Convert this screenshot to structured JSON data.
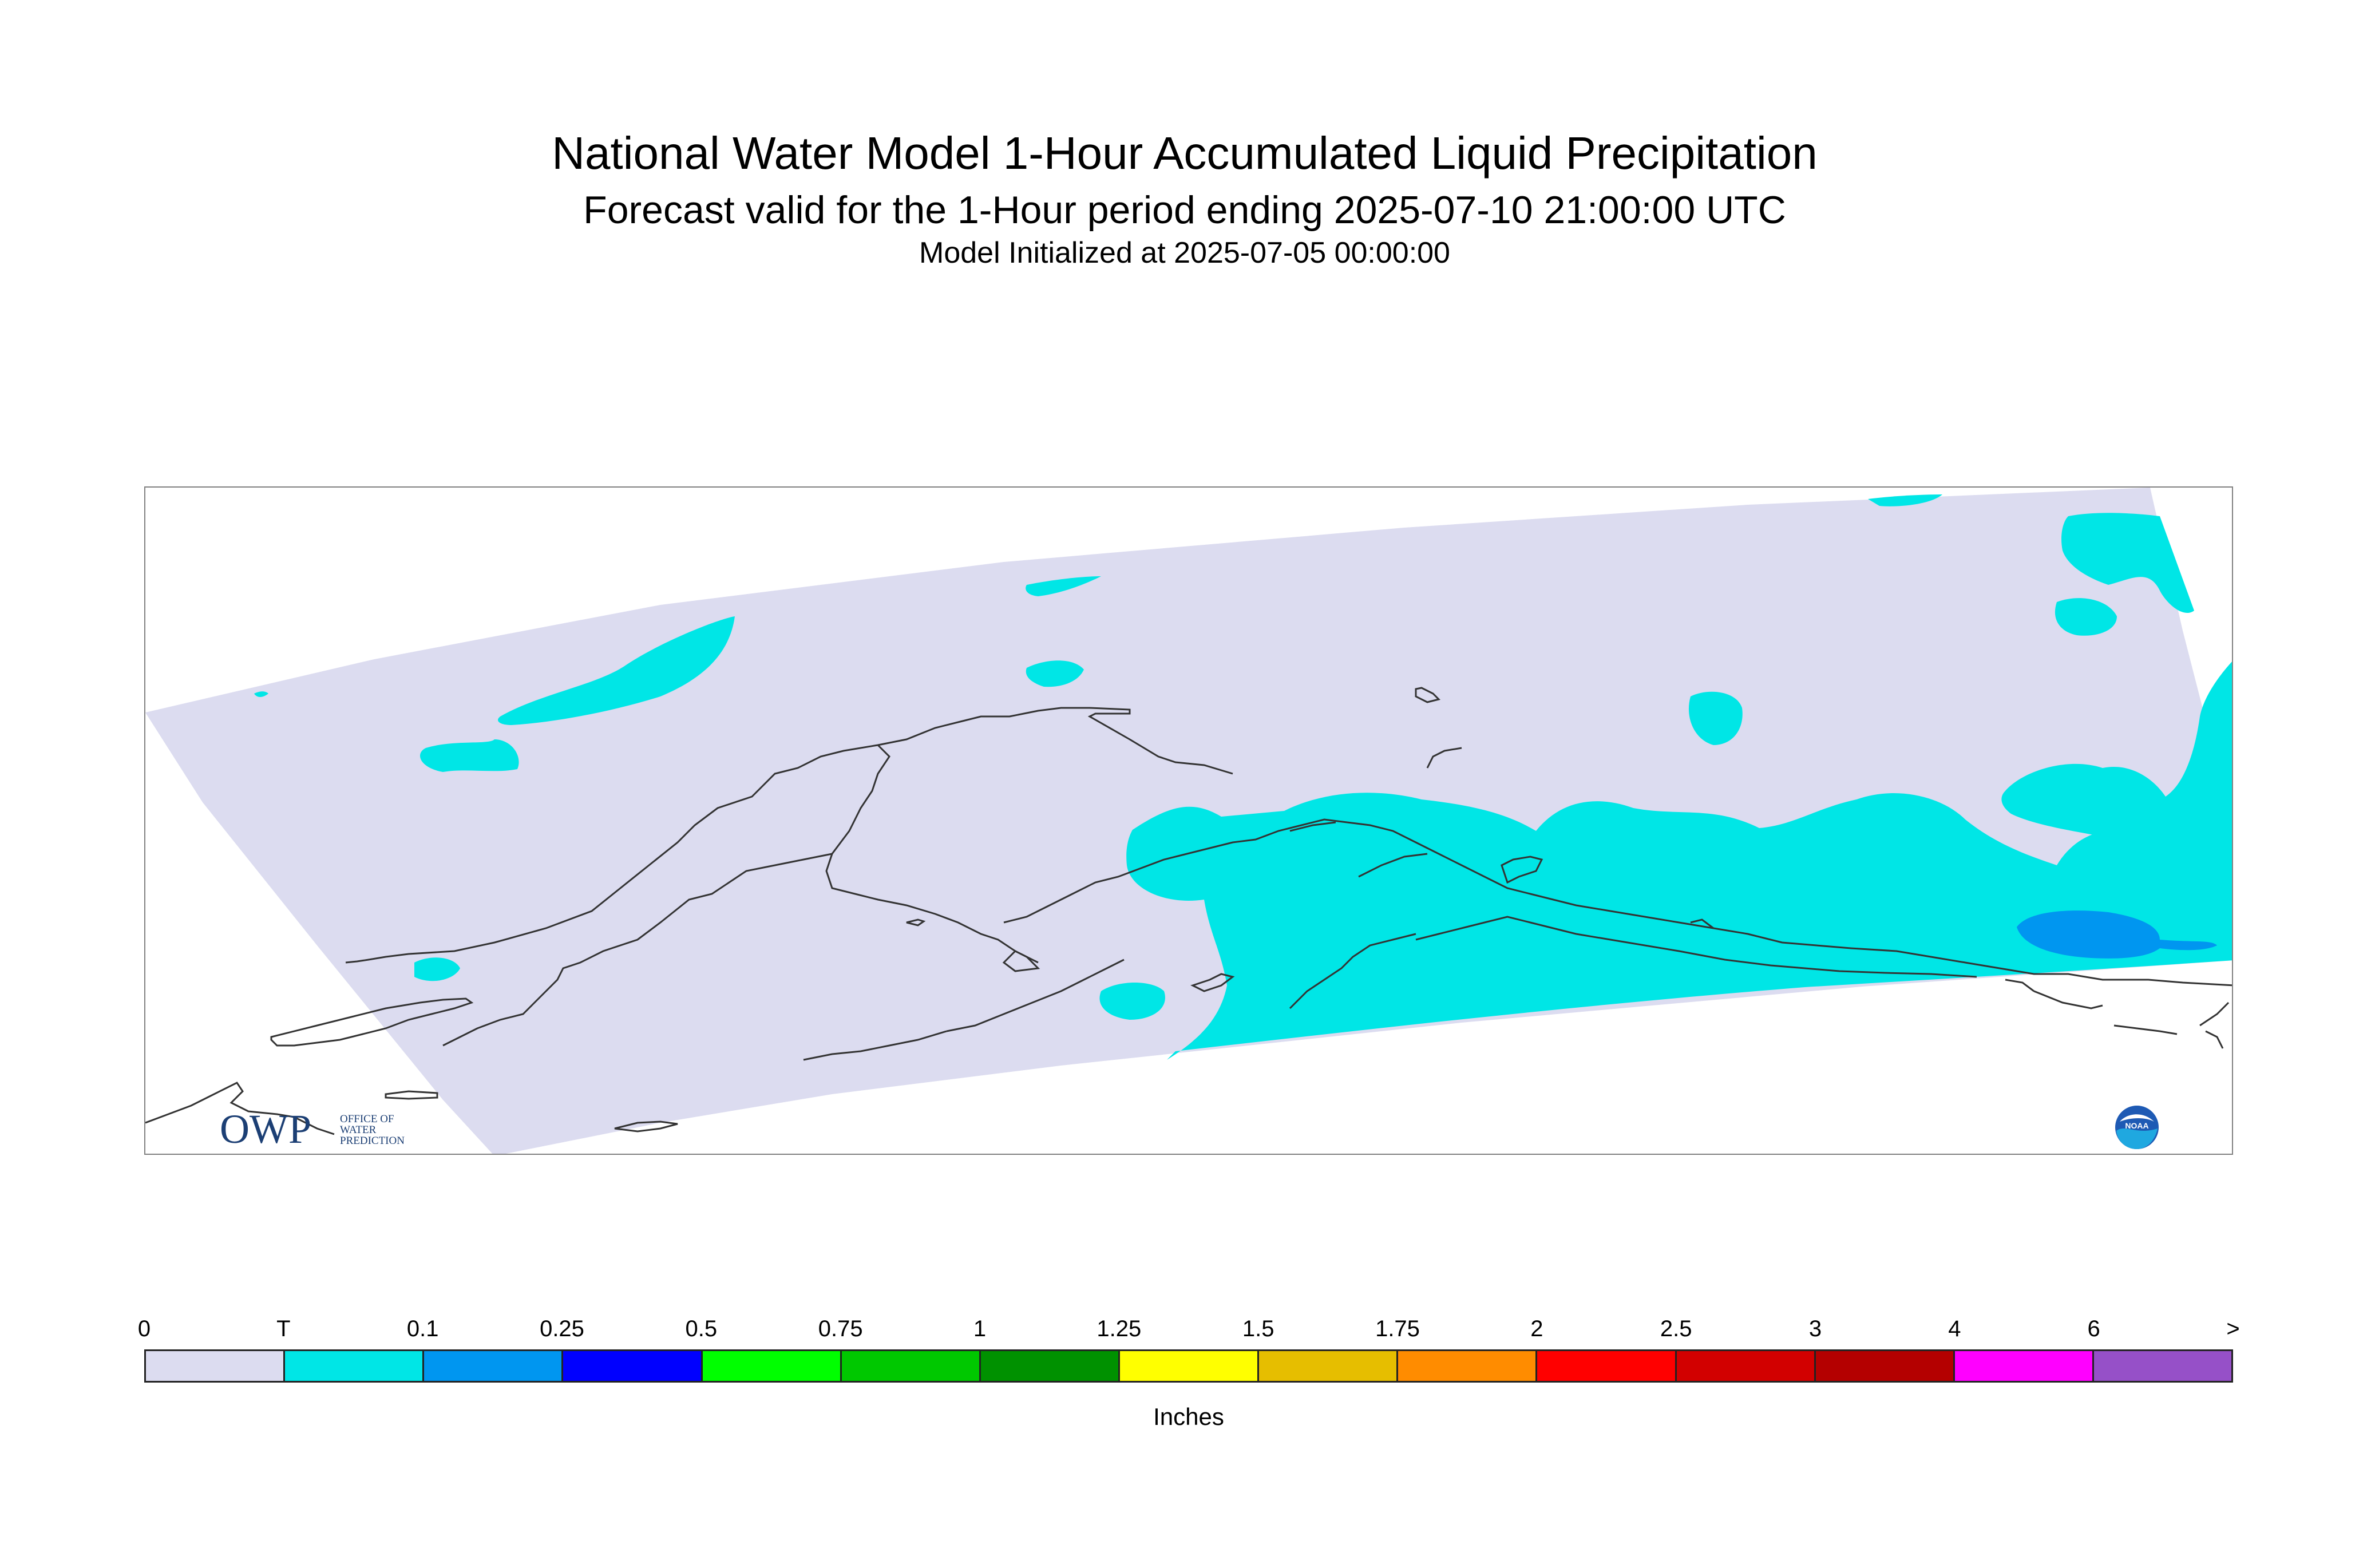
{
  "title": "National Water Model 1-Hour Accumulated Liquid Precipitation",
  "subtitle": "Forecast valid for the 1-Hour period ending 2025-07-10 21:00:00 UTC",
  "init_line": "Model Initialized at 2025-07-05 00:00:00",
  "logos": {
    "owp_letters": "OWP",
    "owp_tag": [
      "OFFICE OF",
      "WATER",
      "PREDICTION"
    ],
    "noaa": "NOAA"
  },
  "legend": {
    "units": "Inches",
    "tick_labels": [
      "0",
      "T",
      "0.1",
      "0.25",
      "0.5",
      "0.75",
      "1",
      "1.25",
      "1.5",
      "1.75",
      "2",
      "2.5",
      "3",
      "4",
      "6",
      ">"
    ],
    "colors": [
      "#dcdcf0",
      "#00e6e6",
      "#0096f0",
      "#0000ff",
      "#00ff00",
      "#00c800",
      "#009100",
      "#ffff00",
      "#e6be00",
      "#ff8c00",
      "#ff0000",
      "#d20000",
      "#b40000",
      "#ff00ff",
      "#9650c8"
    ]
  },
  "map_colors": {
    "domain_fill": "#dcdcf0",
    "trace_fill": "#00e6e6",
    "light_fill": "#0096f0",
    "coast": "#333333"
  }
}
